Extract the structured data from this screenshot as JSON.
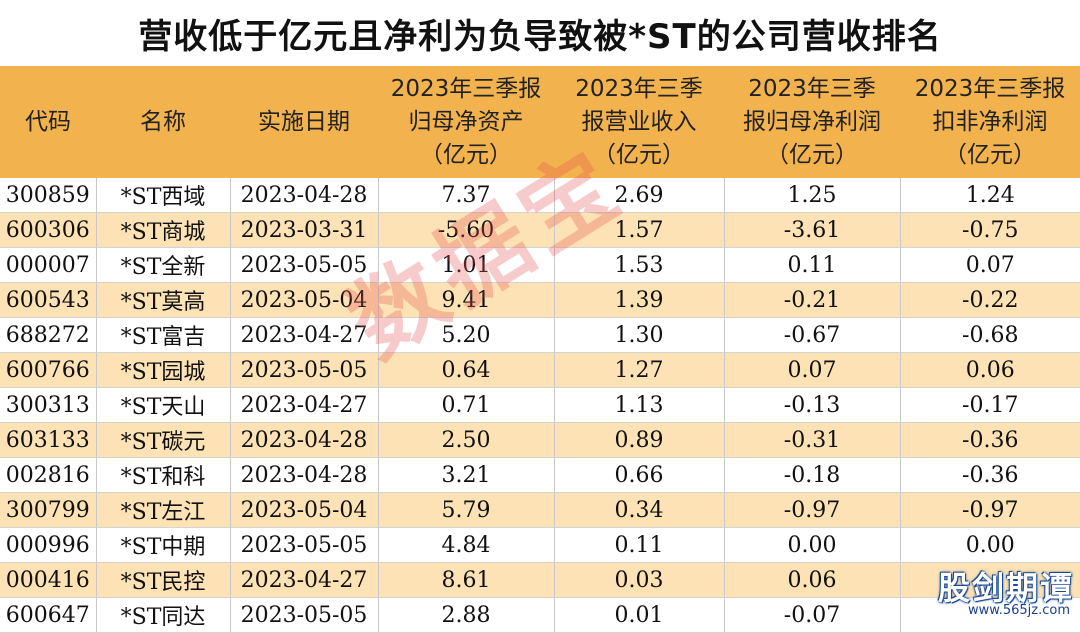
{
  "title": "营收低于亿元且净利为负导致被*ST的公司营收排名",
  "columns": [
    {
      "lines": [
        "代码"
      ]
    },
    {
      "lines": [
        "名称"
      ]
    },
    {
      "lines": [
        "实施日期"
      ]
    },
    {
      "lines": [
        "2023年三季报",
        "归母净资产",
        "（亿元）"
      ]
    },
    {
      "lines": [
        "2023年三季",
        "报营业收入",
        "（亿元）"
      ]
    },
    {
      "lines": [
        "2023年三季",
        "报归母净利润",
        "（亿元）"
      ]
    },
    {
      "lines": [
        "2023年三季报",
        "扣非净利润",
        "（亿元）"
      ]
    }
  ],
  "rows": [
    [
      "300859",
      "*ST西域",
      "2023-04-28",
      "7.37",
      "2.69",
      "1.25",
      "1.24"
    ],
    [
      "600306",
      "*ST商城",
      "2023-03-31",
      "-5.60",
      "1.57",
      "-3.61",
      "-0.75"
    ],
    [
      "000007",
      "*ST全新",
      "2023-05-05",
      "1.01",
      "1.53",
      "0.11",
      "0.07"
    ],
    [
      "600543",
      "*ST莫高",
      "2023-05-04",
      "9.41",
      "1.39",
      "-0.21",
      "-0.22"
    ],
    [
      "688272",
      "*ST富吉",
      "2023-04-27",
      "5.20",
      "1.30",
      "-0.67",
      "-0.68"
    ],
    [
      "600766",
      "*ST园城",
      "2023-05-05",
      "0.64",
      "1.27",
      "0.07",
      "0.06"
    ],
    [
      "300313",
      "*ST天山",
      "2023-04-27",
      "0.71",
      "1.13",
      "-0.13",
      "-0.17"
    ],
    [
      "603133",
      "*ST碳元",
      "2023-04-28",
      "2.50",
      "0.89",
      "-0.31",
      "-0.36"
    ],
    [
      "002816",
      "*ST和科",
      "2023-04-28",
      "3.21",
      "0.66",
      "-0.18",
      "-0.36"
    ],
    [
      "300799",
      "*ST左江",
      "2023-05-04",
      "5.79",
      "0.34",
      "-0.97",
      "-0.97"
    ],
    [
      "000996",
      "*ST中期",
      "2023-05-05",
      "4.84",
      "0.11",
      "0.00",
      "0.00"
    ],
    [
      "000416",
      "*ST民控",
      "2023-04-27",
      "8.61",
      "0.03",
      "0.06",
      ""
    ],
    [
      "600647",
      "*ST同达",
      "2023-05-05",
      "2.88",
      "0.01",
      "-0.07",
      ""
    ]
  ],
  "watermark": "数据宝",
  "logo": {
    "name": "股剑期谭",
    "url": "www.565jz.com"
  },
  "colors": {
    "header_bg": "#f2b24e",
    "stripe_bg": "#fce2b4",
    "watermark": "#e55454"
  }
}
